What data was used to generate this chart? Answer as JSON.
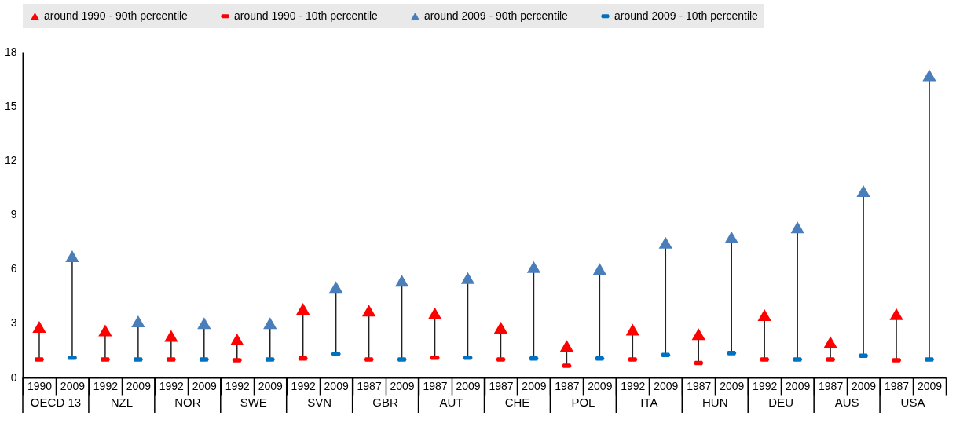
{
  "chart_data": {
    "type": "scatter",
    "categories": [
      "1990",
      "2009",
      "1992",
      "2009",
      "1992",
      "2009",
      "1992",
      "2009",
      "1992",
      "2009",
      "1987",
      "2009",
      "1987",
      "2009",
      "1987",
      "2009",
      "1987",
      "2009",
      "1992",
      "2009",
      "1987",
      "2009",
      "1992",
      "2009",
      "1987",
      "2009",
      "1987",
      "2009"
    ],
    "annotations": [
      "OECD 13",
      "NZL",
      "NOR",
      "SWE",
      "SVN",
      "GBR",
      "AUT",
      "CHE",
      "POL",
      "ITA",
      "HUN",
      "DEU",
      "AUS",
      "USA"
    ],
    "series": [
      {
        "name": "around 1990 - 90th percentile",
        "color": "#ff0000",
        "marker": "triangle",
        "values": [
          2.8,
          null,
          2.6,
          null,
          2.3,
          null,
          2.1,
          null,
          3.8,
          null,
          3.7,
          null,
          3.55,
          null,
          2.75,
          null,
          1.75,
          null,
          2.65,
          null,
          2.4,
          null,
          3.45,
          null,
          1.95,
          null,
          3.5,
          null
        ]
      },
      {
        "name": "around 1990 - 10th percentile",
        "color": "#ff0000",
        "values": [
          1.0,
          null,
          1.0,
          null,
          1.0,
          null,
          0.95,
          null,
          1.05,
          null,
          1.0,
          null,
          1.1,
          null,
          1.0,
          null,
          0.65,
          null,
          1.0,
          null,
          0.8,
          null,
          1.0,
          null,
          1.0,
          null,
          0.95,
          null
        ]
      },
      {
        "name": "around 2009 - 90th percentile",
        "color": "#4a7ebb",
        "marker": "triangle",
        "values": [
          null,
          6.7,
          null,
          3.1,
          null,
          3.0,
          null,
          3.0,
          null,
          5.0,
          null,
          5.35,
          null,
          5.5,
          null,
          6.1,
          null,
          6.0,
          null,
          7.45,
          null,
          7.75,
          null,
          8.3,
          null,
          10.3,
          null,
          16.7
        ]
      },
      {
        "name": "around 2009 - 10th percentile",
        "color": "#0070c0",
        "values": [
          null,
          1.1,
          null,
          1.0,
          null,
          1.0,
          null,
          1.0,
          null,
          1.3,
          null,
          1.0,
          null,
          1.1,
          null,
          1.05,
          null,
          1.05,
          null,
          1.25,
          null,
          1.35,
          null,
          1.0,
          null,
          1.2,
          null,
          1.0
        ]
      }
    ],
    "ylim": [
      0,
      18
    ],
    "yticks": [
      0,
      3,
      6,
      9,
      12,
      15,
      18
    ],
    "grid": true,
    "legend": "top"
  }
}
